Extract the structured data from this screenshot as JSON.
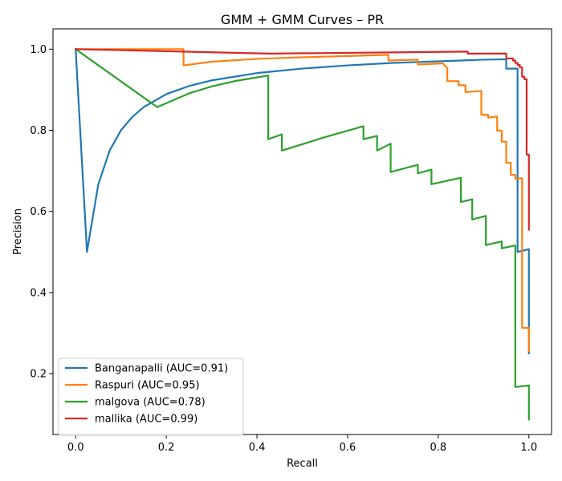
{
  "chart_data": {
    "type": "line",
    "title": "GMM + GMM Curves – PR",
    "xlabel": "Recall",
    "ylabel": "Precision",
    "xlim": [
      -0.05,
      1.05
    ],
    "ylim": [
      0.05,
      1.05
    ],
    "x_ticks": [
      0.0,
      0.2,
      0.4,
      0.6,
      0.8,
      1.0
    ],
    "x_tick_labels": [
      "0.0",
      "0.2",
      "0.4",
      "0.6",
      "0.8",
      "1.0"
    ],
    "y_ticks": [
      0.2,
      0.4,
      0.6,
      0.8,
      1.0
    ],
    "y_tick_labels": [
      "0.2",
      "0.4",
      "0.6",
      "0.8",
      "1.0"
    ],
    "grid": false,
    "legend_position": "lower-left",
    "series": [
      {
        "name": "Banganapalli (AUC=0.91)",
        "color": "#1f77b4",
        "x": [
          0.0,
          0.025,
          0.05,
          0.075,
          0.1,
          0.125,
          0.15,
          0.2,
          0.25,
          0.3,
          0.4,
          0.5,
          0.6,
          0.7,
          0.8,
          0.9,
          0.95,
          0.95,
          0.975,
          0.975,
          1.0,
          1.0
        ],
        "y": [
          1.0,
          0.5,
          0.667,
          0.75,
          0.8,
          0.833,
          0.857,
          0.889,
          0.909,
          0.923,
          0.941,
          0.952,
          0.96,
          0.966,
          0.97,
          0.974,
          0.975,
          0.952,
          0.952,
          0.5,
          0.507,
          0.25
        ]
      },
      {
        "name": "Raspuri (AUC=0.95)",
        "color": "#ff7f0e",
        "x": [
          0.0,
          0.238,
          0.238,
          0.3,
          0.4,
          0.5,
          0.6,
          0.69,
          0.69,
          0.755,
          0.755,
          0.81,
          0.82,
          0.82,
          0.845,
          0.845,
          0.86,
          0.86,
          0.895,
          0.895,
          0.91,
          0.91,
          0.93,
          0.93,
          0.94,
          0.94,
          0.95,
          0.95,
          0.96,
          0.96,
          0.97,
          0.97,
          0.985,
          0.985,
          1.0,
          1.0
        ],
        "y": [
          1.0,
          1.0,
          0.96,
          0.969,
          0.976,
          0.98,
          0.983,
          0.986,
          0.972,
          0.974,
          0.962,
          0.965,
          0.953,
          0.921,
          0.921,
          0.911,
          0.911,
          0.894,
          0.897,
          0.838,
          0.838,
          0.831,
          0.834,
          0.799,
          0.799,
          0.772,
          0.772,
          0.72,
          0.72,
          0.69,
          0.69,
          0.68,
          0.682,
          0.313,
          0.313,
          0.255
        ]
      },
      {
        "name": "malgova (AUC=0.78)",
        "color": "#2ca02c",
        "x": [
          0.0,
          0.18,
          0.25,
          0.3,
          0.35,
          0.425,
          0.425,
          0.455,
          0.455,
          0.55,
          0.635,
          0.635,
          0.665,
          0.665,
          0.695,
          0.695,
          0.755,
          0.755,
          0.785,
          0.785,
          0.85,
          0.85,
          0.875,
          0.875,
          0.905,
          0.905,
          0.94,
          0.94,
          0.97,
          0.97,
          1.0,
          1.0
        ],
        "y": [
          1.0,
          0.857,
          0.891,
          0.908,
          0.921,
          0.935,
          0.778,
          0.79,
          0.75,
          0.783,
          0.81,
          0.778,
          0.786,
          0.75,
          0.767,
          0.697,
          0.715,
          0.694,
          0.703,
          0.667,
          0.683,
          0.623,
          0.63,
          0.58,
          0.589,
          0.517,
          0.526,
          0.509,
          0.516,
          0.167,
          0.171,
          0.087
        ]
      },
      {
        "name": "mallika (AUC=0.99)",
        "color": "#d62728",
        "x": [
          0.0,
          0.43,
          0.865,
          0.865,
          0.95,
          0.95,
          0.965,
          0.965,
          0.97,
          0.97,
          0.975,
          0.975,
          0.98,
          0.98,
          0.985,
          0.985,
          0.99,
          0.99,
          0.995,
          0.995,
          1.0,
          1.0
        ],
        "y": [
          1.0,
          0.989,
          0.994,
          0.989,
          0.989,
          0.977,
          0.977,
          0.972,
          0.972,
          0.966,
          0.966,
          0.961,
          0.961,
          0.955,
          0.955,
          0.932,
          0.932,
          0.926,
          0.926,
          0.74,
          0.74,
          0.555
        ]
      }
    ]
  }
}
